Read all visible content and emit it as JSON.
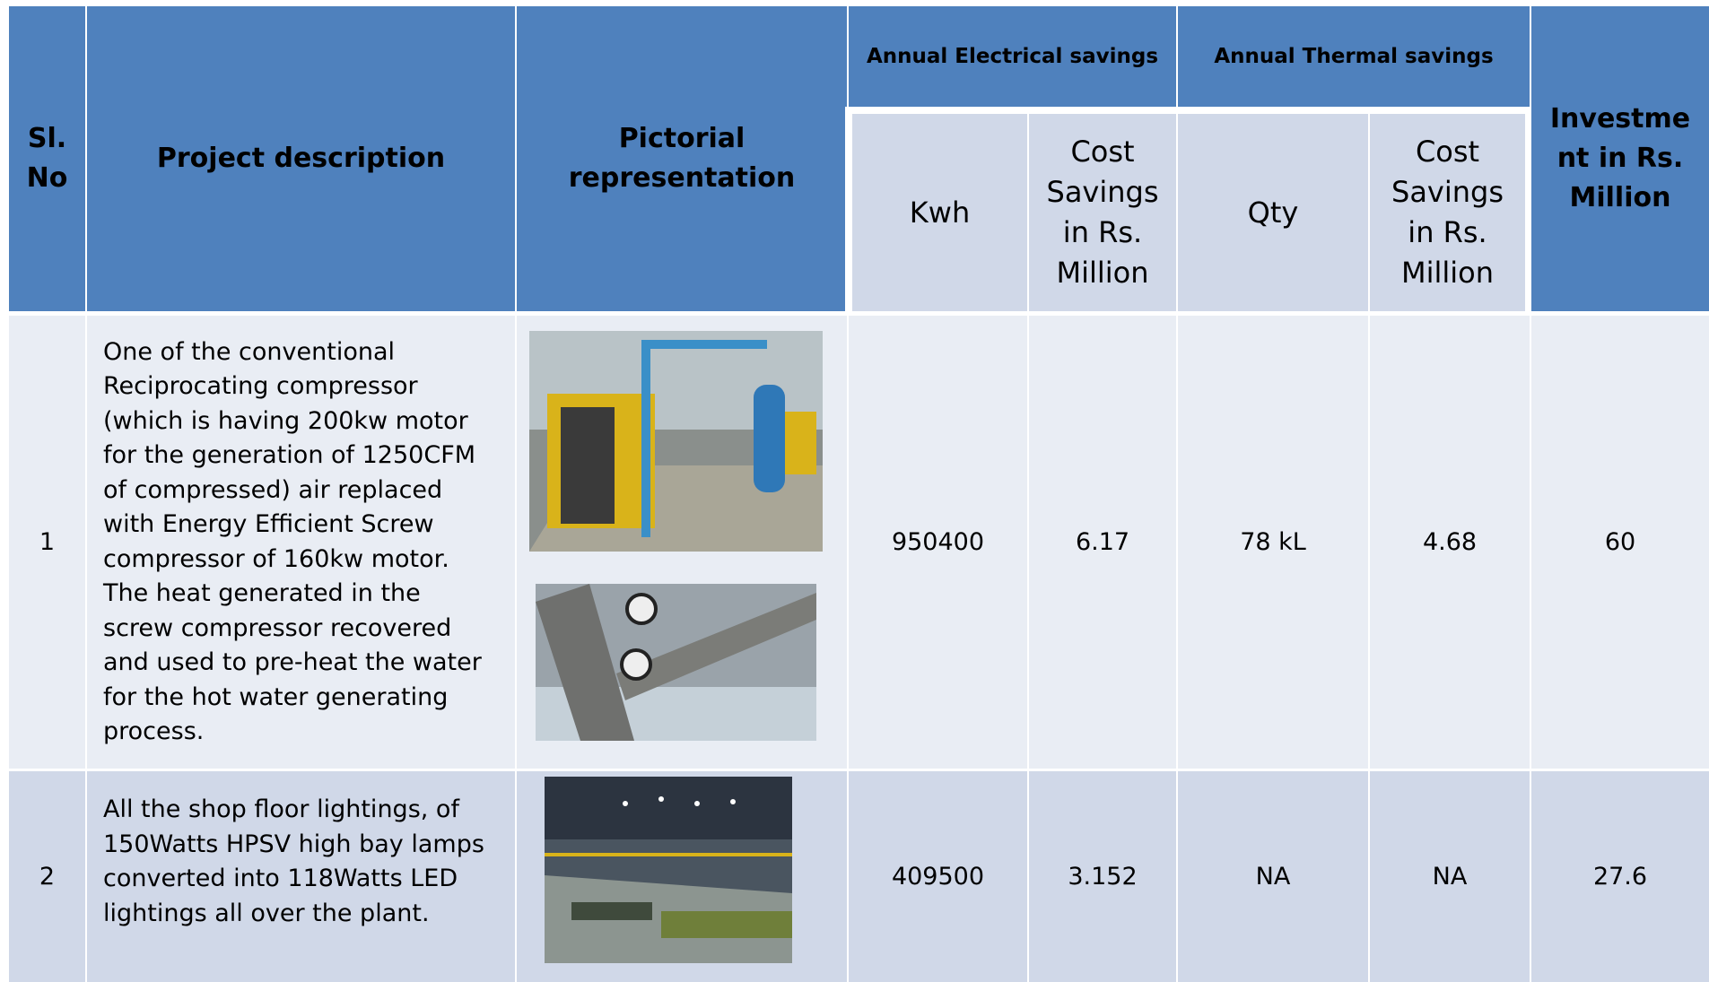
{
  "table": {
    "group_headers": [
      "Annual Electrical savings",
      "Annual Thermal savings"
    ],
    "headers": {
      "sl_no": "Sl. No",
      "description": "Project description",
      "picture": "Pictorial representation",
      "kwh": "Kwh",
      "electrical_cost": "Cost Savings in Rs. Million",
      "qty": "Qty",
      "thermal_cost": "Cost Savings in Rs. Million",
      "investment": "Investment in Rs. Million"
    },
    "rows": [
      {
        "sl_no": 1,
        "description": "One of the conventional Reciprocating compressor (which is having 200kw motor for the generation of 1250CFM of compressed) air replaced with Energy Efficient Screw compressor of 160kw motor. The heat generated in the screw compressor recovered and used to pre-heat the water for the hot water generating process.",
        "kwh": 950400,
        "electrical_cost": 6.17,
        "qty": "78 kL",
        "thermal_cost": 4.68,
        "investment": 60
      },
      {
        "sl_no": 2,
        "description": "All the shop floor lightings, of 150Watts HPSV high bay lamps converted into 118Watts LED lightings all over the plant.",
        "kwh": 409500,
        "electrical_cost": 3.152,
        "qty": "NA",
        "thermal_cost": "NA",
        "investment": 27.6
      }
    ]
  }
}
